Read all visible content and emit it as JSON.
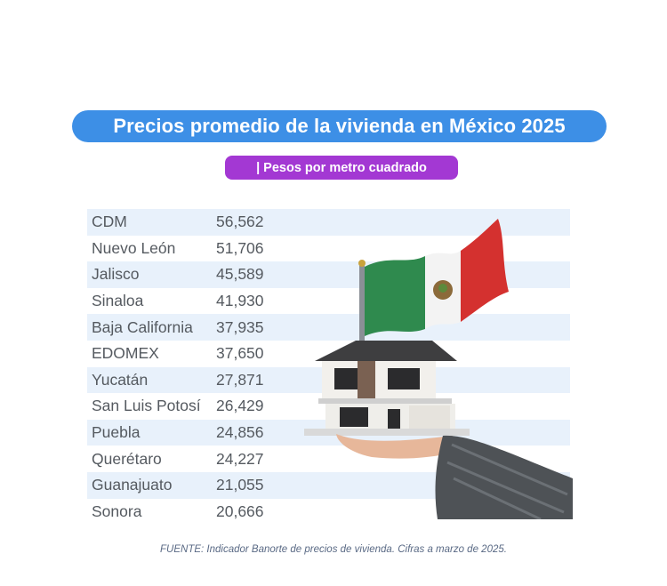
{
  "header": {
    "title": "Precios promedio de la vivienda en México 2025",
    "subtitle": "| Pesos por metro cuadrado"
  },
  "chart_data": {
    "type": "table",
    "title": "Precios promedio de la vivienda en México 2025",
    "subtitle": "| Pesos por metro cuadrado",
    "rows": [
      {
        "state": "CDM",
        "price": "56,562"
      },
      {
        "state": "Nuevo León",
        "price": "51,706"
      },
      {
        "state": "Jalisco",
        "price": "45,589"
      },
      {
        "state": "Sinaloa",
        "price": "41,930"
      },
      {
        "state": "Baja California",
        "price": "37,935"
      },
      {
        "state": "EDOMEX",
        "price": "37,650"
      },
      {
        "state": "Yucatán",
        "price": "27,871"
      },
      {
        "state": "San Luis Potosí",
        "price": "26,429"
      },
      {
        "state": "Puebla",
        "price": "24,856"
      },
      {
        "state": "Querétaro",
        "price": "24,227"
      },
      {
        "state": "Guanajuato",
        "price": "21,055"
      },
      {
        "state": "Sonora",
        "price": "20,666"
      }
    ]
  },
  "footer": {
    "source": "FUENTE: Indicador Banorte de precios de vivienda. Cifras a marzo de 2025."
  },
  "colors": {
    "title_bg": "#3d8fe6",
    "subtitle_bg": "#a338d3",
    "row_shade": "#e8f1fb",
    "text": "#555a60"
  },
  "illustration": {
    "icons": [
      "mexico-flag-icon",
      "house-icon",
      "hand-icon"
    ]
  }
}
